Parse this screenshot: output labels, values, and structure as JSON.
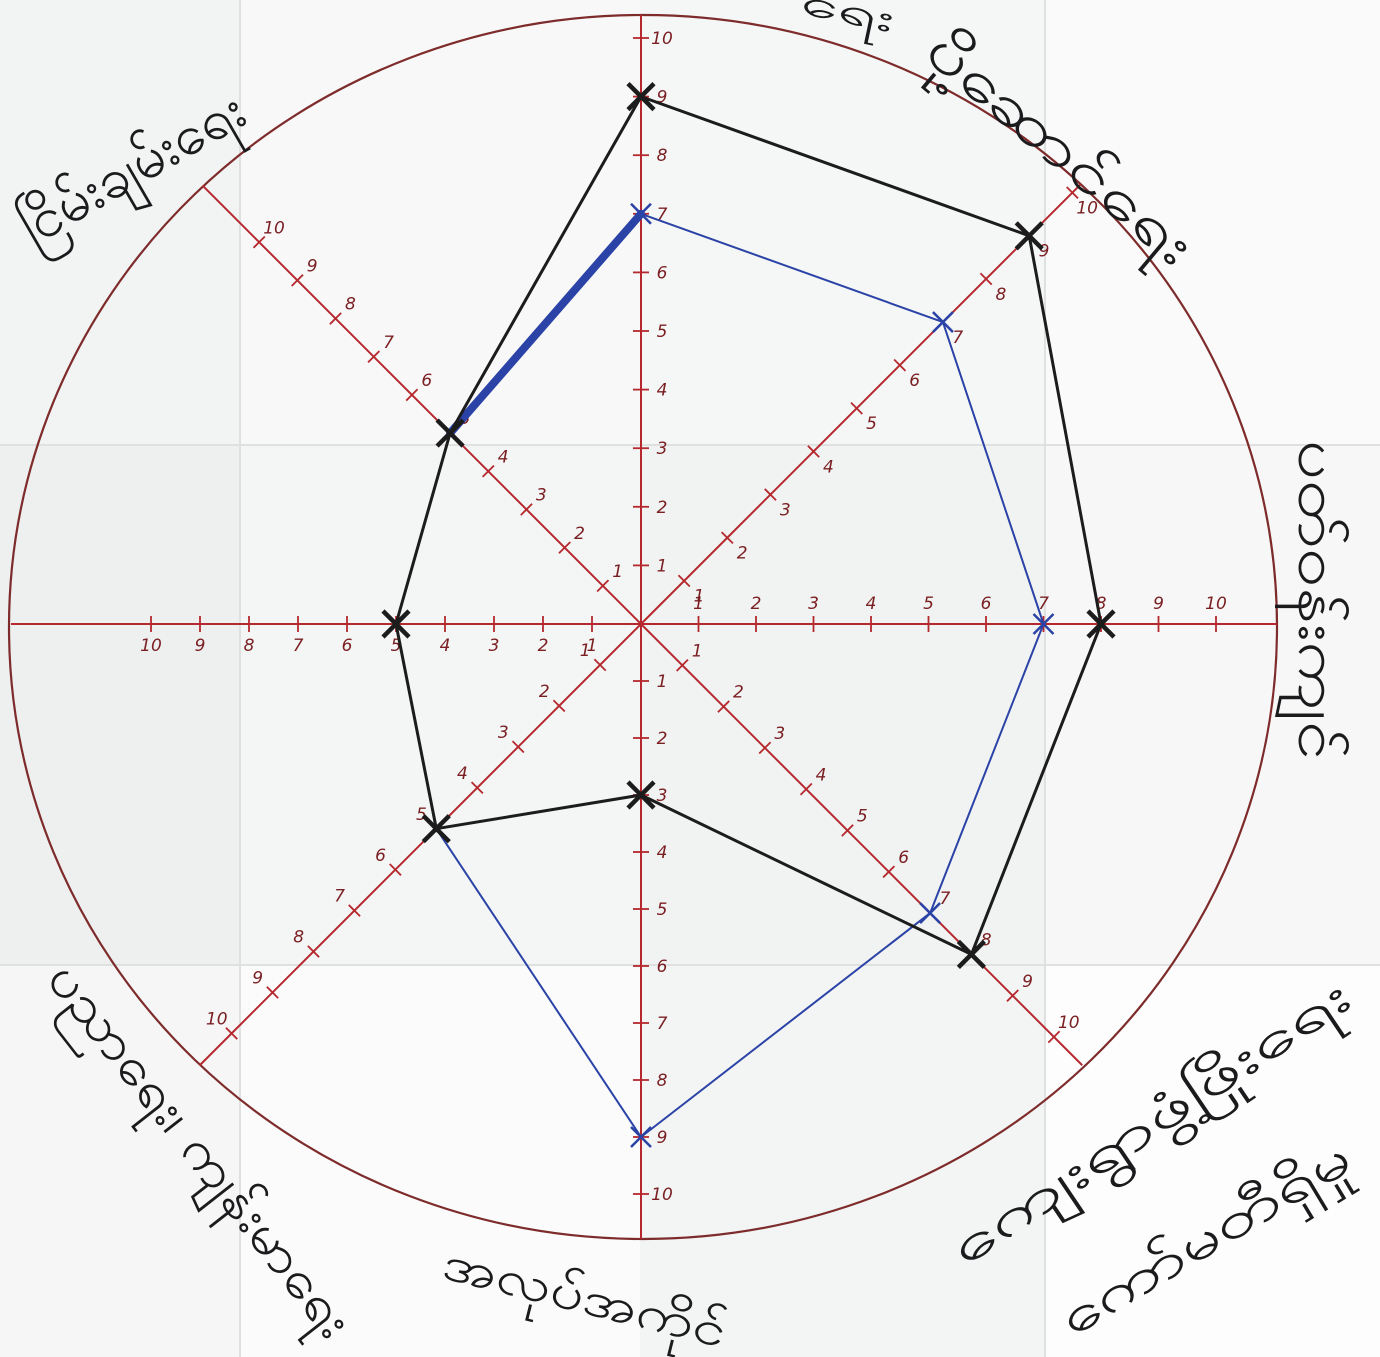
{
  "chart_data": {
    "type": "radar",
    "range": [
      0,
      10
    ],
    "tick_labels": [
      "1",
      "2",
      "3",
      "4",
      "5",
      "6",
      "7",
      "8",
      "9",
      "10"
    ],
    "axes": [
      {
        "label": [
          "ရေး"
        ]
      },
      {
        "label": [
          "ပို့ဆောင်ရေး"
        ]
      },
      {
        "label": [
          "ပတ်ဝန်းကျင်"
        ]
      },
      {
        "label": [
          "ကျေးရွာဖွံ့ဖြိုးရေး",
          "ကော်မတီရှိမှု"
        ]
      },
      {
        "label": [
          "အလုပ်အကိုင်"
        ]
      },
      {
        "label": [
          "ပညာရေး၊ ကျန်းမာရေး"
        ]
      },
      {
        "label": []
      },
      {
        "label": [
          "ငြိမ်းချမ်းရေး"
        ]
      }
    ],
    "series": [
      {
        "color": "#1c1c1c",
        "values": [
          9,
          9,
          8,
          8,
          3,
          5,
          5,
          5
        ]
      },
      {
        "color": "#2b43a6",
        "values": [
          7,
          7,
          7,
          7,
          9,
          5,
          5,
          5
        ]
      }
    ],
    "axis_color": "#b5292e",
    "circle_color": "#7e2b2b",
    "label_color": "#1b1b1d",
    "tick_label_color": "#7a1f22"
  }
}
